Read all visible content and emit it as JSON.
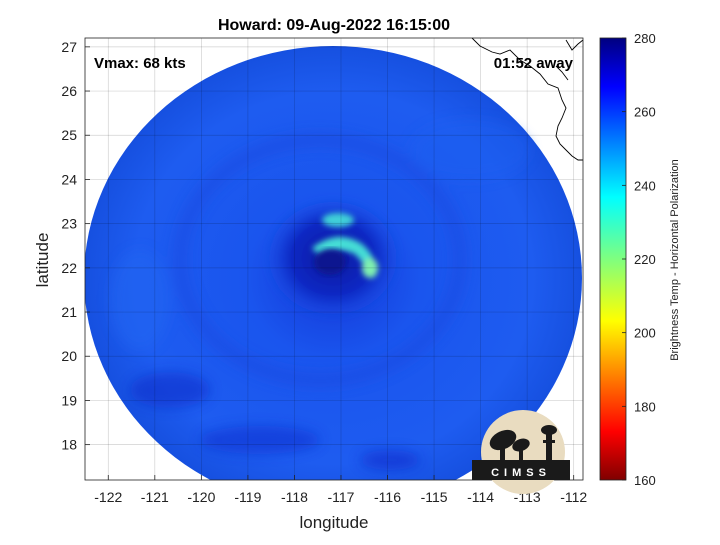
{
  "chart_data": {
    "type": "heatmap",
    "title": "Howard: 09-Aug-2022 16:15:00",
    "xlabel": "longitude",
    "ylabel": "latitude",
    "xlim": [
      -122.5,
      -111.8
    ],
    "ylim": [
      17.2,
      27.2
    ],
    "xticks": [
      -122,
      -121,
      -120,
      -119,
      -118,
      -117,
      -116,
      -115,
      -114,
      -113,
      -112
    ],
    "yticks": [
      18,
      19,
      20,
      21,
      22,
      23,
      24,
      25,
      26,
      27
    ],
    "grid": true,
    "annotations": {
      "vmax": "Vmax: 68 kts",
      "time_away": "01:52 away"
    },
    "storm_center": {
      "lon": -117.3,
      "lat": 22.2
    },
    "colorbar": {
      "label": "Brightness Temp - Horizontal Polarization",
      "range": [
        160,
        280
      ],
      "ticks": [
        160,
        180,
        200,
        220,
        240,
        260,
        280
      ],
      "colormap": "jet"
    },
    "logo_text": "CIMSS"
  },
  "colors": {
    "swath_base": "#1a4fe6",
    "swath_dark": "#0a2bd0",
    "eye_dark": "#0818a8",
    "eyewall_warm": "#3fe0d0",
    "coastline": "#000000"
  }
}
